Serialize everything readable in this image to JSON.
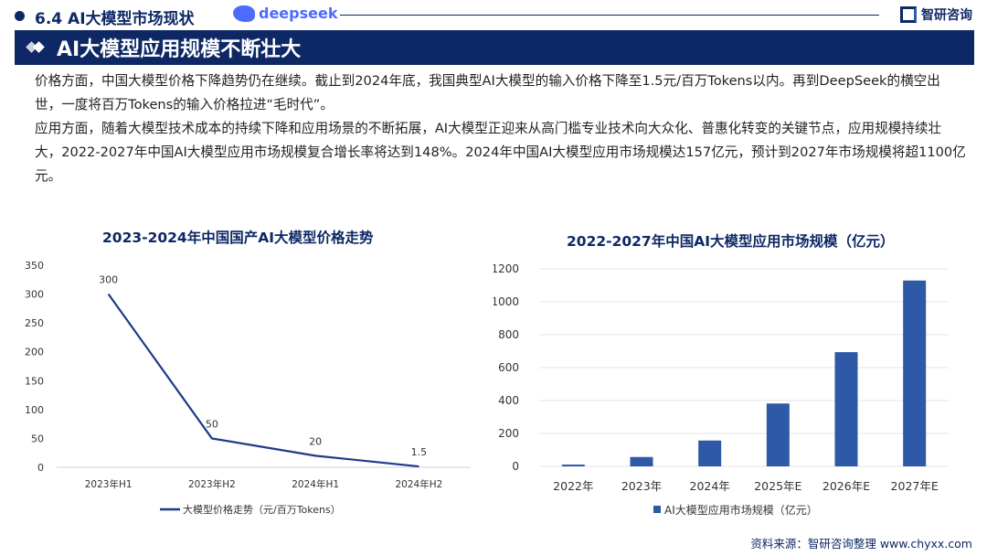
{
  "header": {
    "section": "6.4 AI大模型市场现状",
    "logo_text": "deepseek",
    "brand": "智研咨询"
  },
  "banner": {
    "title": "AI大模型应用规模不断壮大"
  },
  "paragraphs": [
    "价格方面，中国大模型价格下降趋势仍在继续。截止到2024年底，我国典型AI大模型的输入价格下降至1.5元/百万Tokens以内。再到DeepSeek的横空出世，一度将百万Tokens的输入价格拉进“毛时代”。",
    "应用方面，随着大模型技术成本的持续下降和应用场景的不断拓展，AI大模型正迎来从高门槛专业技术向大众化、普惠化转变的关键节点，应用规模持续壮大，2022-2027年中国AI大模型应用市场规模复合增长率将达到148%。2024年中国AI大模型应用市场规模达157亿元，预计到2027年市场规模将超1100亿元。"
  ],
  "footer": {
    "source": "资料来源：智研咨询整理   www.chyxx.com"
  },
  "chart_data": [
    {
      "type": "line",
      "title": "2023-2024年中国国产AI大模型价格走势",
      "categories": [
        "2023年H1",
        "2023年H2",
        "2024年H1",
        "2024年H2"
      ],
      "series": [
        {
          "name": "大模型价格走势（元/百万Tokens）",
          "values": [
            300,
            50,
            20,
            1.5
          ],
          "data_labels": [
            "300",
            "50",
            "20",
            "1.5"
          ]
        }
      ],
      "ylim": [
        0,
        350
      ],
      "yticks": [
        0,
        50,
        100,
        150,
        200,
        250,
        300,
        350
      ],
      "grid": false,
      "legend": "bottom",
      "color": "#1f3a8a"
    },
    {
      "type": "bar",
      "title": "2022-2027年中国AI大模型应用市场规模（亿元）",
      "categories": [
        "2022年",
        "2023年",
        "2024年",
        "2025年E",
        "2026年E",
        "2027年E"
      ],
      "series": [
        {
          "name": "AI大模型应用市场规模（亿元）",
          "values": [
            11,
            57,
            157,
            382,
            694,
            1129
          ]
        }
      ],
      "ylim": [
        0,
        1200
      ],
      "yticks": [
        0,
        200,
        400,
        600,
        800,
        1000,
        1200
      ],
      "grid": true,
      "legend": "bottom",
      "color": "#2e59a7"
    }
  ]
}
